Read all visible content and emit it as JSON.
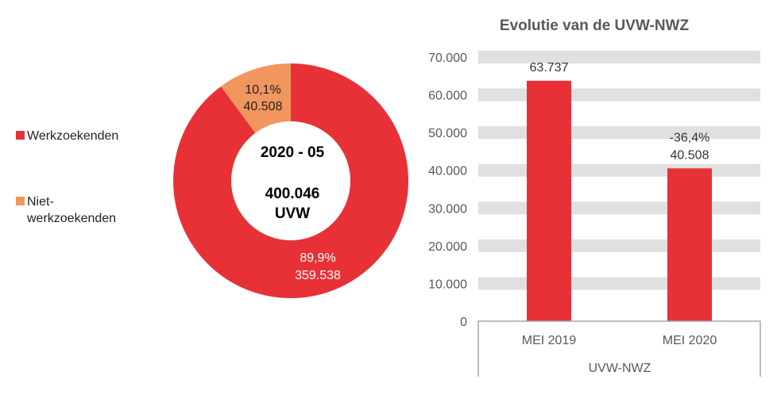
{
  "chart_data": [
    {
      "type": "pie",
      "variant": "donut",
      "center_label": {
        "line1": "2020 - 05",
        "line2": "400.046",
        "line3": "UVW"
      },
      "slices": [
        {
          "name": "Werkzoekenden",
          "value": 359538,
          "value_label": "359.538",
          "pct_label": "89,9%",
          "color": "#E83137"
        },
        {
          "name": "Niet-werkzoekenden",
          "value": 40508,
          "value_label": "40.508",
          "pct_label": "10,1%",
          "color": "#F0965E"
        }
      ],
      "legend": {
        "placement": "left",
        "entries": [
          "Werkzoekenden",
          "Niet-",
          "werkzoekenden"
        ]
      }
    },
    {
      "type": "bar",
      "title": "Evolutie van de UVW-NWZ",
      "categories": [
        "MEI 2019",
        "MEI 2020"
      ],
      "values": [
        63737,
        40508
      ],
      "data_labels": [
        [
          "63.737"
        ],
        [
          "-36,4%",
          "40.508"
        ]
      ],
      "xlabel": "UVW-NWZ",
      "ylim": [
        0,
        70000
      ],
      "yticks": [
        0,
        10000,
        20000,
        30000,
        40000,
        50000,
        60000,
        70000
      ],
      "ytick_labels": [
        "0",
        "10.000",
        "20.000",
        "30.000",
        "40.000",
        "50.000",
        "60.000",
        "70.000"
      ],
      "grid": "banded",
      "bar_color": "#E83137",
      "grid_color": "#E0E0E0"
    }
  ]
}
